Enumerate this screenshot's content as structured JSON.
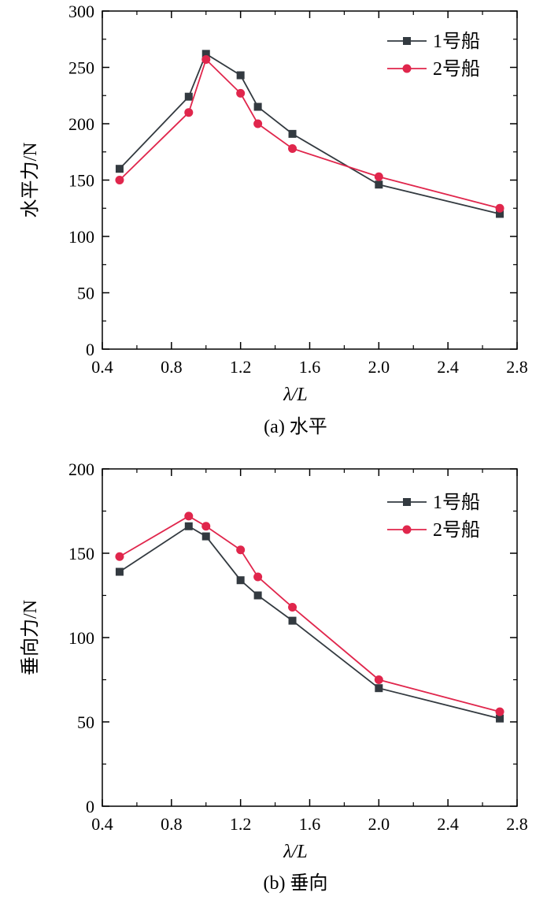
{
  "chart_data": [
    {
      "type": "line",
      "title": "",
      "caption": "(a) 水平",
      "xlabel": "λ/L",
      "ylabel": "水平力/N",
      "xlim": [
        0.4,
        2.8
      ],
      "ylim": [
        0,
        300
      ],
      "xticks": [
        0.4,
        0.8,
        1.2,
        1.6,
        2.0,
        2.4,
        2.8
      ],
      "xtick_labels": [
        "0.4",
        "0.8",
        "1.2",
        "1.6",
        "2.0",
        "2.4",
        "2.8"
      ],
      "yticks": [
        0,
        50,
        100,
        150,
        200,
        250,
        300
      ],
      "ytick_labels": [
        "0",
        "50",
        "100",
        "150",
        "200",
        "250",
        "300"
      ],
      "legend_position": "top-right",
      "series": [
        {
          "name": "1号船",
          "marker": "square",
          "color": "#333a40",
          "x": [
            0.5,
            0.9,
            1.0,
            1.2,
            1.3,
            1.5,
            2.0,
            2.7
          ],
          "values": [
            160,
            224,
            262,
            243,
            215,
            191,
            146,
            120
          ]
        },
        {
          "name": "2号船",
          "marker": "circle",
          "color": "#e0264c",
          "x": [
            0.5,
            0.9,
            1.0,
            1.2,
            1.3,
            1.5,
            2.0,
            2.7
          ],
          "values": [
            150,
            210,
            257,
            227,
            200,
            178,
            153,
            125
          ]
        }
      ]
    },
    {
      "type": "line",
      "title": "",
      "caption": "(b) 垂向",
      "xlabel": "λ/L",
      "ylabel": "垂向力/N",
      "xlim": [
        0.4,
        2.8
      ],
      "ylim": [
        0,
        200
      ],
      "xticks": [
        0.4,
        0.8,
        1.2,
        1.6,
        2.0,
        2.4,
        2.8
      ],
      "xtick_labels": [
        "0.4",
        "0.8",
        "1.2",
        "1.6",
        "2.0",
        "2.4",
        "2.8"
      ],
      "yticks": [
        0,
        50,
        100,
        150,
        200
      ],
      "ytick_labels": [
        "0",
        "50",
        "100",
        "150",
        "200"
      ],
      "legend_position": "top-right",
      "series": [
        {
          "name": "1号船",
          "marker": "square",
          "color": "#333a40",
          "x": [
            0.5,
            0.9,
            1.0,
            1.2,
            1.3,
            1.5,
            2.0,
            2.7
          ],
          "values": [
            139,
            166,
            160,
            134,
            125,
            110,
            70,
            52
          ]
        },
        {
          "name": "2号船",
          "marker": "circle",
          "color": "#e0264c",
          "x": [
            0.5,
            0.9,
            1.0,
            1.2,
            1.3,
            1.5,
            2.0,
            2.7
          ],
          "values": [
            148,
            172,
            166,
            152,
            136,
            118,
            75,
            56
          ]
        }
      ]
    }
  ]
}
